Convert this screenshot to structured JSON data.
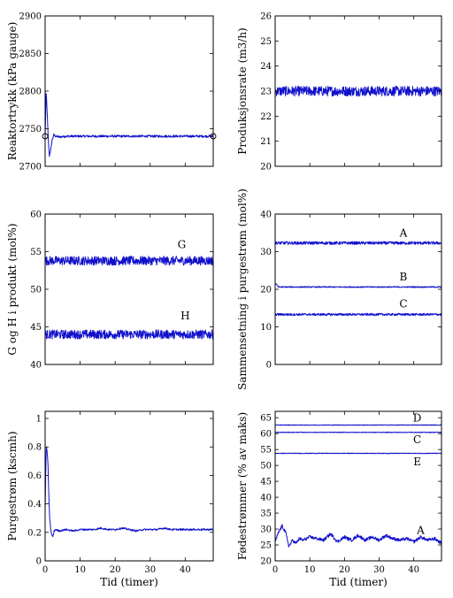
{
  "chart_data": [
    {
      "type": "line",
      "title": "",
      "xlabel": "",
      "ylabel": "Reaktortrykk (kPa gauge)",
      "xlim": [
        0,
        48
      ],
      "ylim": [
        2700,
        2900
      ],
      "yticks": [
        2700,
        2750,
        2800,
        2850,
        2900
      ],
      "xticks": [],
      "grid": false,
      "series": [
        {
          "x": [
            0,
            0.3,
            0.6,
            0.9,
            1.2,
            1.6,
            2.0,
            2.5,
            3.0,
            4,
            6,
            10,
            15,
            20,
            25,
            30,
            35,
            40,
            45,
            48
          ],
          "values": [
            2740,
            2800,
            2770,
            2735,
            2714,
            2722,
            2735,
            2742,
            2740,
            2739,
            2740,
            2740,
            2740,
            2740,
            2740,
            2740,
            2740,
            2740,
            2740,
            2740
          ],
          "noise": 1.5
        }
      ],
      "markers": [
        {
          "x": 0,
          "y": 2740
        },
        {
          "x": 48,
          "y": 2740
        }
      ]
    },
    {
      "type": "line",
      "title": "",
      "xlabel": "",
      "ylabel": "Produksjonsrate (m3/h)",
      "xlim": [
        0,
        48
      ],
      "ylim": [
        20,
        26
      ],
      "yticks": [
        20,
        21,
        22,
        23,
        24,
        25,
        26
      ],
      "xticks": [],
      "grid": false,
      "series": [
        {
          "x": [
            0,
            48
          ],
          "values": [
            23.0,
            23.0
          ],
          "noise": 0.2
        }
      ]
    },
    {
      "type": "line",
      "title": "",
      "xlabel": "",
      "ylabel": "G og H i produkt (mol%)",
      "xlim": [
        0,
        48
      ],
      "ylim": [
        40,
        60
      ],
      "yticks": [
        40,
        45,
        50,
        55,
        60
      ],
      "xticks": [],
      "grid": false,
      "series": [
        {
          "name": "G",
          "x": [
            0,
            48
          ],
          "values": [
            53.8,
            53.8
          ],
          "noise": 0.6
        },
        {
          "name": "H",
          "x": [
            0,
            48
          ],
          "values": [
            44.0,
            44.0
          ],
          "noise": 0.6
        }
      ],
      "annotations": [
        {
          "text": "G",
          "x": 39,
          "y": 55.5
        },
        {
          "text": "H",
          "x": 40,
          "y": 46.0
        }
      ]
    },
    {
      "type": "line",
      "title": "",
      "xlabel": "",
      "ylabel": "Sammensetning i purgestrøm (mol%)",
      "xlim": [
        0,
        48
      ],
      "ylim": [
        0,
        40
      ],
      "yticks": [
        0,
        10,
        20,
        30,
        40
      ],
      "xticks": [],
      "grid": false,
      "series": [
        {
          "name": "A",
          "x": [
            0,
            48
          ],
          "values": [
            32.3,
            32.3
          ],
          "noise": 0.4
        },
        {
          "name": "B",
          "x": [
            0,
            0.5,
            1.0,
            48
          ],
          "values": [
            21.5,
            21.2,
            20.6,
            20.6
          ],
          "noise": 0.15
        },
        {
          "name": "C",
          "x": [
            0,
            48
          ],
          "values": [
            13.3,
            13.3
          ],
          "noise": 0.3
        }
      ],
      "annotations": [
        {
          "text": "A",
          "x": 37,
          "y": 34
        },
        {
          "text": "B",
          "x": 37,
          "y": 22.3
        },
        {
          "text": "C",
          "x": 37,
          "y": 15.2
        }
      ]
    },
    {
      "type": "line",
      "title": "",
      "xlabel": "Tid (timer)",
      "ylabel": "Purgestrøm (kscmh)",
      "xlim": [
        0,
        48
      ],
      "ylim": [
        0,
        1.05
      ],
      "yticks": [
        0,
        0.2,
        0.4,
        0.6,
        0.8,
        1
      ],
      "xticks": [
        0,
        10,
        20,
        30,
        40
      ],
      "grid": false,
      "series": [
        {
          "x": [
            0,
            0.3,
            0.5,
            0.8,
            1.0,
            1.3,
            1.6,
            1.9,
            2.2,
            2.6,
            3.0,
            4,
            6,
            8,
            10,
            12,
            14,
            16,
            18,
            20,
            22,
            24,
            26,
            28,
            30,
            32,
            34,
            36,
            38,
            40,
            42,
            44,
            46,
            48
          ],
          "values": [
            0.35,
            0.8,
            0.78,
            0.7,
            0.5,
            0.3,
            0.22,
            0.18,
            0.17,
            0.21,
            0.22,
            0.21,
            0.22,
            0.21,
            0.22,
            0.22,
            0.22,
            0.23,
            0.22,
            0.22,
            0.23,
            0.22,
            0.21,
            0.22,
            0.22,
            0.22,
            0.23,
            0.22,
            0.22,
            0.22,
            0.22,
            0.22,
            0.22,
            0.22
          ],
          "noise": 0.006
        }
      ]
    },
    {
      "type": "line",
      "title": "",
      "xlabel": "Tid (timer)",
      "ylabel": "Fødestrømmer (% av maks)",
      "xlim": [
        0,
        48
      ],
      "ylim": [
        20,
        67
      ],
      "yticks": [
        20,
        25,
        30,
        35,
        40,
        45,
        50,
        55,
        60,
        65
      ],
      "xticks": [
        0,
        10,
        20,
        30,
        40
      ],
      "grid": false,
      "series": [
        {
          "name": "D",
          "x": [
            0,
            48
          ],
          "values": [
            62.7,
            62.7
          ],
          "noise": 0.1
        },
        {
          "name": "C",
          "x": [
            0,
            48
          ],
          "values": [
            60.4,
            60.4
          ],
          "noise": 0.1
        },
        {
          "name": "E",
          "x": [
            0,
            48
          ],
          "values": [
            53.8,
            53.8
          ],
          "noise": 0.1
        },
        {
          "name": "A",
          "x": [
            0,
            1,
            2,
            3,
            4,
            5,
            6,
            7,
            8,
            10,
            12,
            14,
            16,
            18,
            20,
            22,
            24,
            26,
            28,
            30,
            32,
            34,
            36,
            38,
            40,
            42,
            44,
            46,
            48
          ],
          "values": [
            26,
            29,
            31,
            29,
            24.5,
            26.5,
            25.5,
            27,
            26.5,
            27.5,
            27,
            26.5,
            28.5,
            26,
            27.5,
            26.5,
            28,
            26.5,
            27.5,
            26.5,
            28,
            27,
            26.5,
            27,
            26,
            27.5,
            26.5,
            27,
            25.5
          ],
          "noise": 0.5
        }
      ],
      "annotations": [
        {
          "text": "D",
          "x": 41,
          "y": 63.8
        },
        {
          "text": "C",
          "x": 41,
          "y": 57.0
        },
        {
          "text": "E",
          "x": 41,
          "y": 50.0
        },
        {
          "text": "A",
          "x": 42,
          "y": 28.5
        }
      ]
    }
  ]
}
